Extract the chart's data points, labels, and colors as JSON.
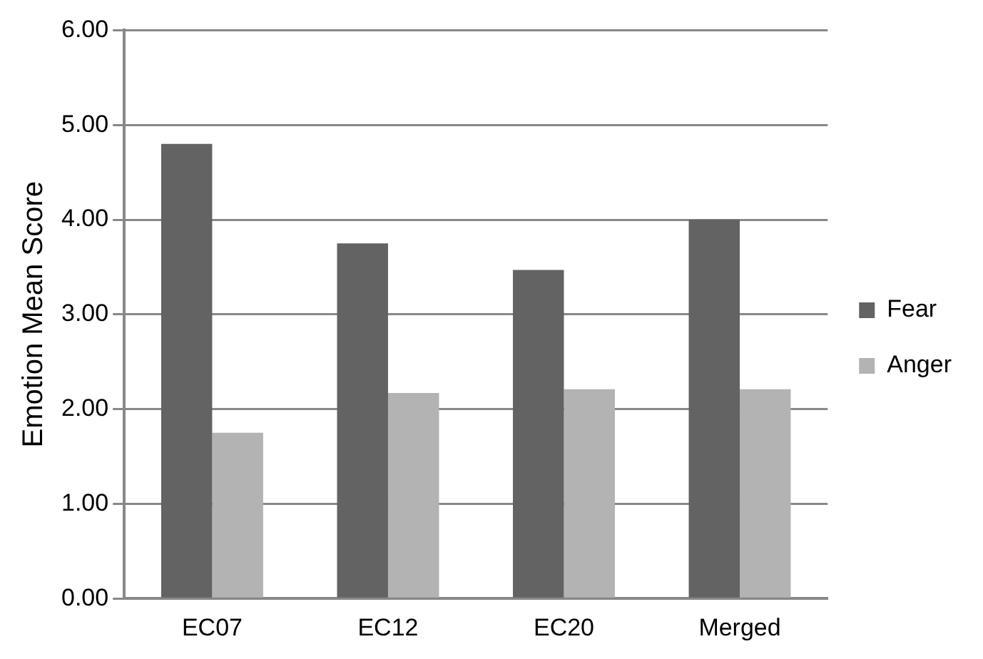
{
  "chart_data": {
    "type": "bar",
    "ylabel": "Emotion Mean Score",
    "categories": [
      "EC07",
      "EC12",
      "EC20",
      "Merged"
    ],
    "series": [
      {
        "name": "Fear",
        "color": "#636363",
        "values": [
          4.8,
          3.75,
          3.47,
          4.0
        ]
      },
      {
        "name": "Anger",
        "color": "#b3b3b3",
        "values": [
          1.75,
          2.17,
          2.21,
          2.21
        ]
      }
    ],
    "ylim": [
      0,
      6
    ],
    "yticks": [
      {
        "value": 0,
        "label": "0.00"
      },
      {
        "value": 1,
        "label": "1.00"
      },
      {
        "value": 2,
        "label": "2.00"
      },
      {
        "value": 3,
        "label": "3.00"
      },
      {
        "value": 4,
        "label": "4.00"
      },
      {
        "value": 5,
        "label": "5.00"
      },
      {
        "value": 6,
        "label": "6.00"
      }
    ],
    "grid": "y",
    "legend": "right"
  }
}
